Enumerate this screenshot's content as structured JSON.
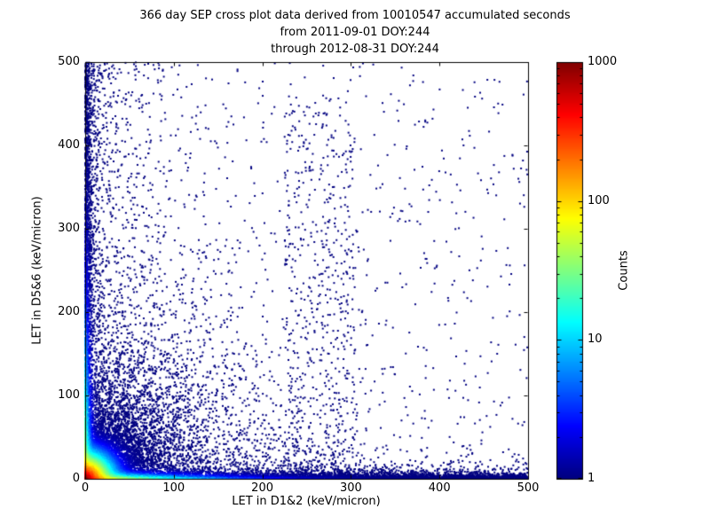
{
  "chart_data": {
    "type": "scatter",
    "title": "366 day SEP cross plot data derived from 10010547 accumulated seconds",
    "subtitle": [
      "from 2011-09-01 DOY:244",
      "through 2012-08-31 DOY:244"
    ],
    "xlabel": "LET in D1&2 (keV/micron)",
    "ylabel": "LET in D5&6 (keV/micron)",
    "xlim": [
      0,
      500
    ],
    "ylim": [
      0,
      500
    ],
    "x_ticks": [
      0,
      100,
      200,
      300,
      400,
      500
    ],
    "y_ticks": [
      0,
      100,
      200,
      300,
      400,
      500
    ],
    "grid": false,
    "legend": "none",
    "point_color_low": "#00007f",
    "point_color_high": "#7f0000",
    "colorbar": {
      "label": "Counts",
      "scale": "log",
      "range": [
        1,
        1000
      ],
      "ticks": [
        1000,
        100,
        10,
        1
      ],
      "colormap": "jet"
    },
    "seed": 20110901,
    "count_model": {
      "base": 1,
      "terms": [
        {
          "kind": "radial",
          "amp": 1000,
          "scale": 7
        },
        {
          "kind": "x-band",
          "amp": 120,
          "x_scale": 50,
          "y_scale": 2.5
        },
        {
          "kind": "y-band",
          "amp": 60,
          "y_scale": 70,
          "x_scale": 2.5
        }
      ]
    },
    "components": [
      {
        "type": "uniform",
        "n": 700
      },
      {
        "type": "left-cloud",
        "n": 900,
        "x_scale": 55
      },
      {
        "type": "column",
        "n": 520,
        "x_min": 225,
        "x_range": 80,
        "y_max": 460,
        "y_pow": 1.4
      },
      {
        "type": "rays",
        "n_per": 160,
        "angles_deg": [
          18,
          27,
          35,
          42,
          50,
          58,
          66,
          74
        ],
        "r_scale": 70,
        "jitter_deg": 1.2
      },
      {
        "type": "cloud",
        "n": 2600,
        "x_scale": 80,
        "y_scale": 60
      },
      {
        "type": "band-y",
        "n": 800,
        "len_pow": 1.0,
        "len_max": 500,
        "spread": 8
      },
      {
        "type": "band-x",
        "n": 1200,
        "len_pow": 1.0,
        "len_max": 500,
        "spread": 8
      },
      {
        "type": "band-y",
        "n": 2200,
        "len_pow": 1.8,
        "len_max": 500,
        "spread": 2.5
      },
      {
        "type": "band-x",
        "n": 5000,
        "len_pow": 1.6,
        "len_max": 500,
        "spread": 2.5
      },
      {
        "type": "radial",
        "n": 2600,
        "r_scale": 45
      },
      {
        "type": "radial",
        "n": 5000,
        "r_scale": 18
      },
      {
        "type": "radial",
        "n": 9000,
        "r_scale": 6
      }
    ]
  }
}
